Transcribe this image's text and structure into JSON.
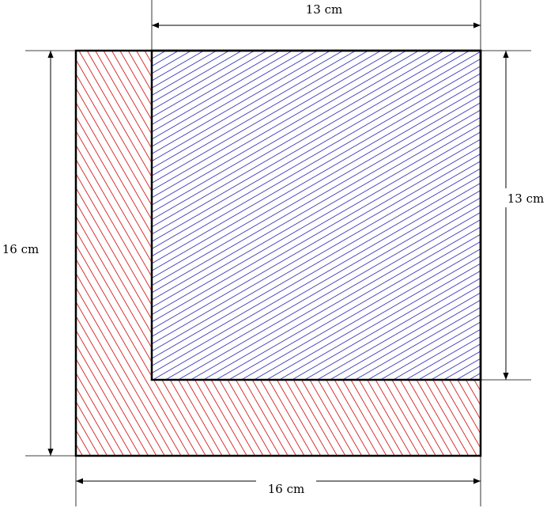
{
  "dimensions": {
    "top": "13 cm",
    "bottom": "16 cm",
    "left": "16 cm",
    "right": "13 cm"
  },
  "colors": {
    "outer_hatch": "#cc0000",
    "inner_hatch": "#0000aa",
    "outline": "#000000",
    "background": "#ffffff"
  }
}
